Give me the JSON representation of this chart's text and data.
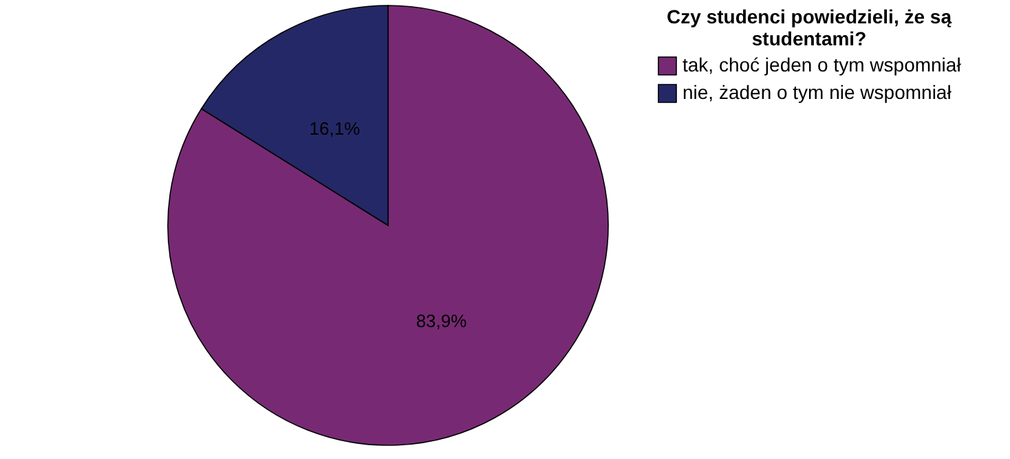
{
  "chart_data": {
    "type": "pie",
    "legend_title": "Czy studenci powiedzieli, że są studentami?",
    "categories": [
      "tak, choć jeden o tym wspomniał",
      "nie, żaden o tym nie wspomniał"
    ],
    "values": [
      83.9,
      16.1
    ],
    "colors": [
      "#772a73",
      "#252867"
    ],
    "value_labels": [
      "83,9%",
      "16,1%"
    ],
    "legend": "top right"
  }
}
